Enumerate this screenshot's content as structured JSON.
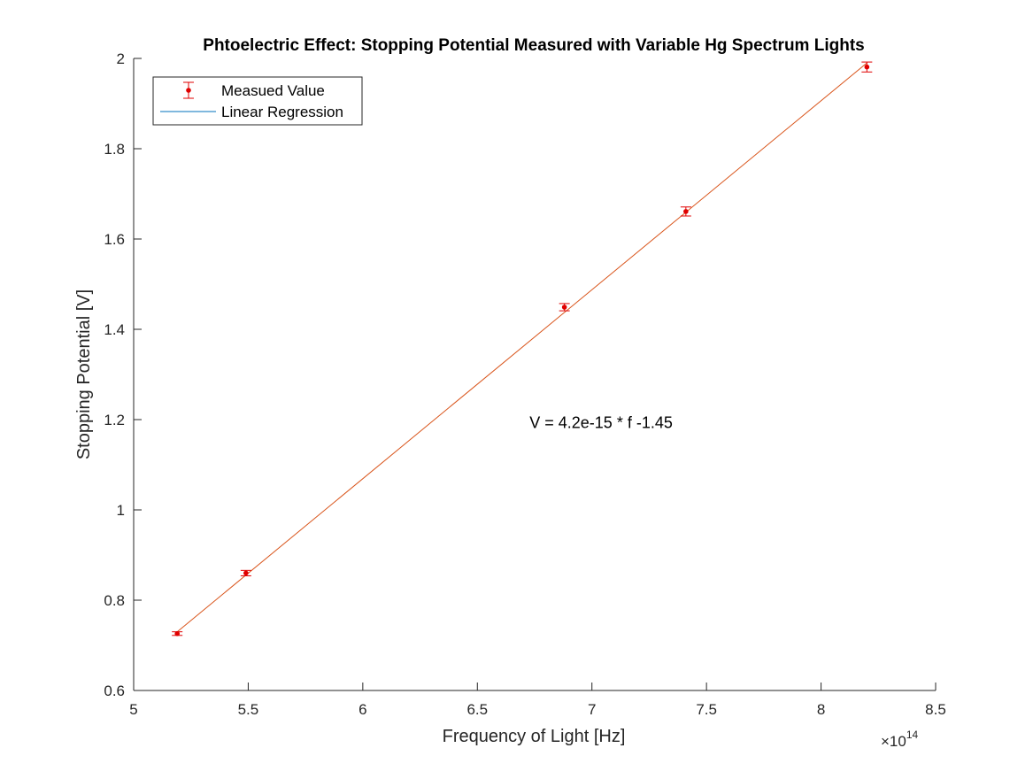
{
  "chart_data": {
    "type": "scatter",
    "title": "Phtoelectric Effect: Stopping Potential Measured with Variable Hg Spectrum Lights",
    "xlabel": "Frequency of Light [Hz]",
    "ylabel": "Stopping Potential [V]",
    "x_exponent_label": "×10",
    "x_exponent": "14",
    "xlim": [
      5,
      8.5
    ],
    "ylim": [
      0.6,
      2
    ],
    "x_tick_values": [
      5,
      5.5,
      6,
      6.5,
      7,
      7.5,
      8,
      8.5
    ],
    "x_tick_labels": [
      "5",
      "5.5",
      "6",
      "6.5",
      "7",
      "7.5",
      "8",
      "8.5"
    ],
    "y_tick_values": [
      0.6,
      0.8,
      1,
      1.2,
      1.4,
      1.6,
      1.8,
      2
    ],
    "y_tick_labels": [
      "0.6",
      "0.8",
      "1",
      "1.2",
      "1.4",
      "1.6",
      "1.8",
      "2"
    ],
    "grid": false,
    "legend_position": "top-left",
    "series": [
      {
        "name": "Measued Value",
        "kind": "errorbar",
        "color": "#e00000",
        "x": [
          5.19,
          5.49,
          6.88,
          7.41,
          8.2
        ],
        "y": [
          0.726,
          0.86,
          1.449,
          1.661,
          1.981
        ],
        "error": [
          0.004,
          0.006,
          0.008,
          0.01,
          0.011
        ]
      },
      {
        "name": "Linear Regression",
        "kind": "line",
        "color": "#0072bd",
        "x": [
          5.19,
          8.2
        ],
        "y": [
          0.73,
          1.99
        ]
      }
    ],
    "fit_line_drawn_color": "#d95319",
    "annotation": {
      "text": "V = 4.2e-15 * f -1.45",
      "x": 7.04,
      "y": 1.195
    }
  }
}
